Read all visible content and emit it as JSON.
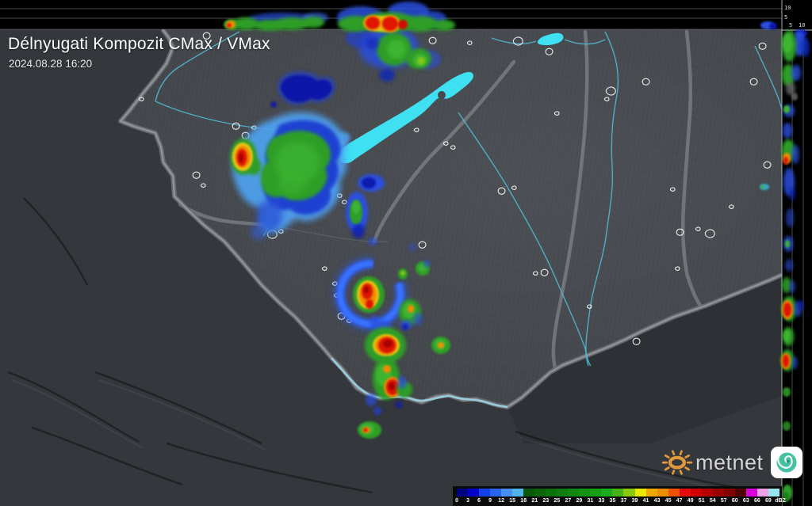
{
  "header": {
    "title": "Délnyugati Kompozit CMax / VMax",
    "timestamp": "2024.08.28 16:20"
  },
  "colorbar": {
    "unit": "dBZ",
    "ticks": [
      "0",
      "3",
      "6",
      "9",
      "12",
      "15",
      "18",
      "21",
      "23",
      "25",
      "27",
      "29",
      "31",
      "33",
      "35",
      "37",
      "39",
      "41",
      "43",
      "45",
      "47",
      "49",
      "51",
      "54",
      "57",
      "60",
      "63",
      "66",
      "69"
    ],
    "colors": [
      "#000082",
      "#0000C8",
      "#1440E8",
      "#2864F0",
      "#4690F5",
      "#50B4EE",
      "#085808",
      "#0A640A",
      "#0C700C",
      "#0E7C0E",
      "#108810",
      "#129412",
      "#16A016",
      "#1AAC1A",
      "#46B414",
      "#8CC80A",
      "#E8E800",
      "#F0A800",
      "#F08C00",
      "#F05000",
      "#E60A0A",
      "#D20000",
      "#B40000",
      "#9B0000",
      "#820000",
      "#500000",
      "#DC00DC",
      "#F0A0E6",
      "#96E6F0"
    ]
  },
  "profile_axes": {
    "height_tick_10": "10",
    "height_tick_5": "5",
    "dist_tick_5": "5",
    "dist_tick_10": "10"
  },
  "branding": {
    "logo_text": "metnet",
    "sun_color": "#E2993C",
    "swirl_color": "#45C0A0"
  },
  "map_colors": {
    "lake": "#3FE0F2",
    "river": "#4FB8D0",
    "border": "#85888D",
    "land_inside": "#45484E",
    "land_outside": "#34373C"
  }
}
